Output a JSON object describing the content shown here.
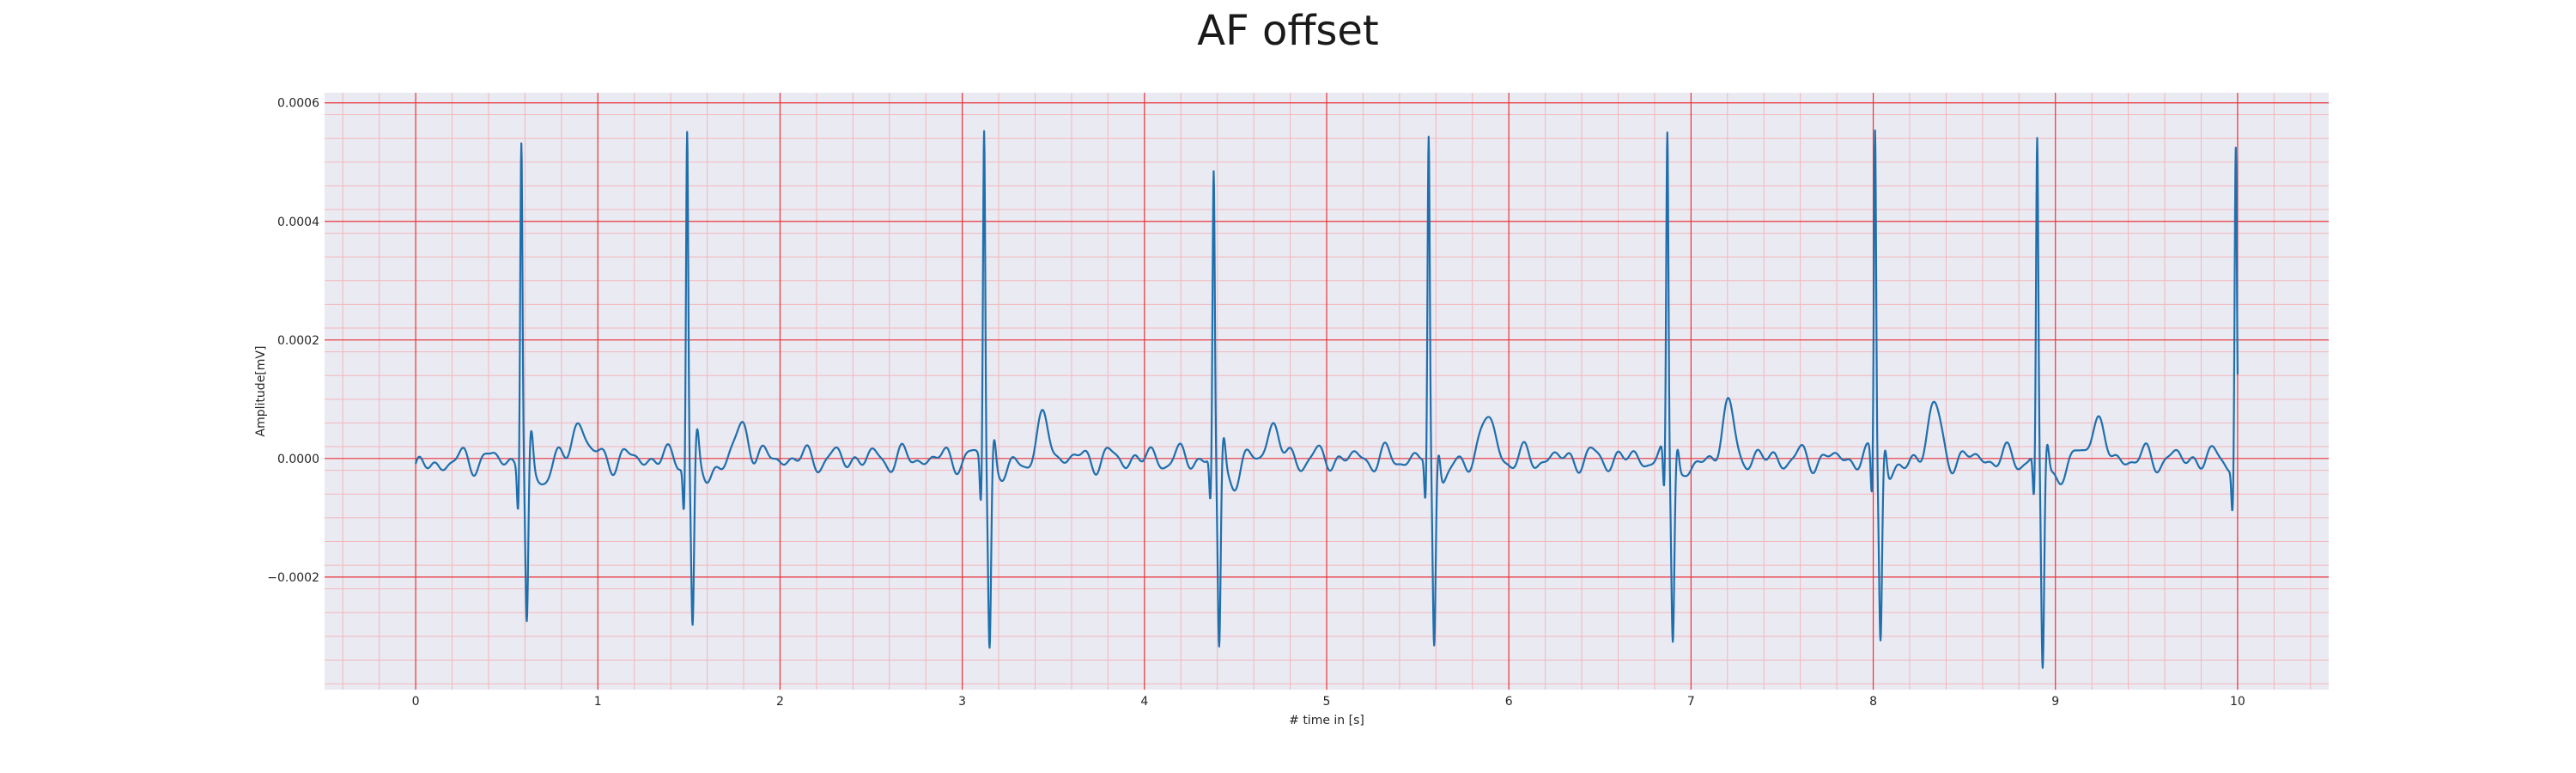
{
  "chart_data": {
    "type": "line",
    "title": "AF offset",
    "xlabel": "# time in [s]",
    "ylabel": "Amplitude[mV]",
    "xlim": [
      -0.5,
      10.5
    ],
    "ylim": [
      -0.00039,
      0.000617
    ],
    "xticks": [
      0,
      1,
      2,
      3,
      4,
      5,
      6,
      7,
      8,
      9,
      10
    ],
    "xtick_labels": [
      "0",
      "1",
      "2",
      "3",
      "4",
      "5",
      "6",
      "7",
      "8",
      "9",
      "10"
    ],
    "yticks": [
      -0.0002,
      0.0,
      0.0002,
      0.0004,
      0.0006
    ],
    "ytick_labels": [
      "−0.0002",
      "0.0000",
      "0.0002",
      "0.0004",
      "0.0006"
    ],
    "grid": true,
    "minor_grid": true,
    "colors": {
      "line": "#1f6fad",
      "grid_major": "#e8333a",
      "grid_minor": "#f2b7bb",
      "background": "#eaeaf2"
    },
    "series": [
      {
        "r_peaks": [
          [
            0.58,
            0.000545,
            -0.000285
          ],
          [
            1.49,
            0.000565,
            -0.00028
          ],
          [
            3.12,
            0.00057,
            -0.0003
          ],
          [
            4.38,
            0.00048,
            -0.000315
          ],
          [
            5.56,
            0.000535,
            -0.000305
          ],
          [
            6.87,
            0.000545,
            -0.00028
          ],
          [
            8.01,
            0.00056,
            -0.000285
          ],
          [
            8.9,
            0.00053,
            -0.000345
          ],
          [
            9.99,
            0.000525,
            null
          ]
        ],
        "t_waves": [
          [
            0.9,
            6.5e-05
          ],
          [
            1.8,
            5.5e-05
          ],
          [
            3.45,
            6e-05
          ],
          [
            4.7,
            5.5e-05
          ],
          [
            5.88,
            7e-05
          ],
          [
            7.2,
            8e-05
          ],
          [
            8.33,
            8.5e-05
          ],
          [
            9.22,
            7e-05
          ]
        ],
        "x_start": 0.0,
        "x_end": 10.0,
        "baseline_start": -2e-05
      }
    ]
  }
}
